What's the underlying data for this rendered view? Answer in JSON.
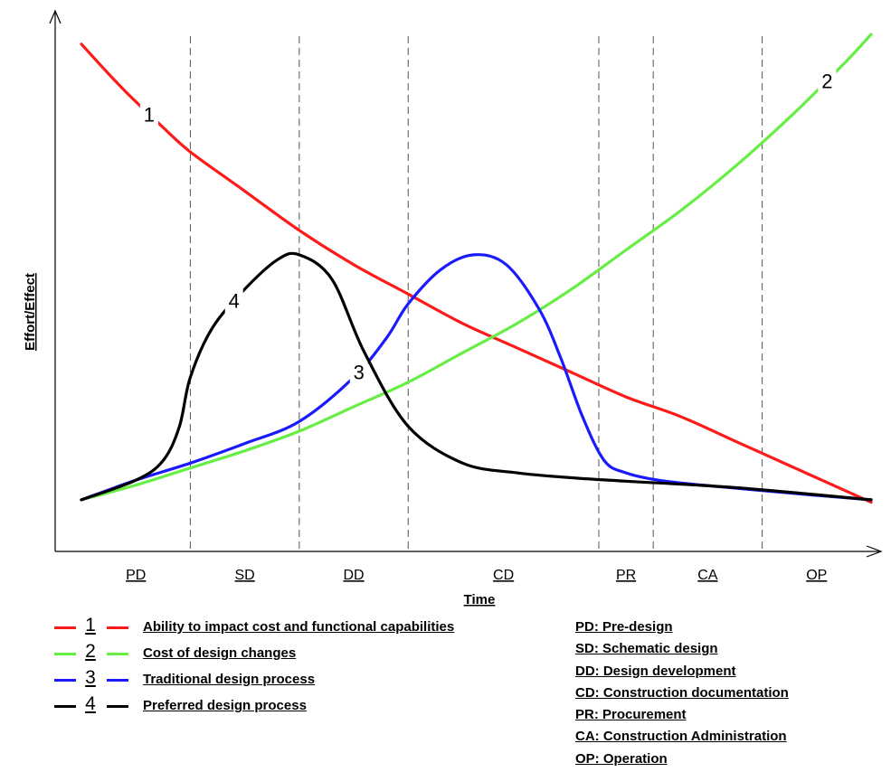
{
  "chart_data": {
    "type": "line",
    "xlabel": "Time",
    "ylabel": "Effort/Effect",
    "phases": [
      "PD",
      "SD",
      "DD",
      "CD",
      "PR",
      "CA",
      "OP"
    ],
    "phase_boundaries": [
      0,
      1,
      2,
      3,
      4.75,
      5.25,
      6.25,
      7.25
    ],
    "series": [
      {
        "name": "Ability to impact cost and functional capabilities",
        "number": "1",
        "color": "#ff1a1a",
        "x": [
          0,
          0.375,
          0.75,
          1.0,
          1.5,
          2.0,
          2.5,
          3.0,
          3.5,
          4.0,
          4.5,
          5.0,
          5.5,
          6.0,
          6.5,
          7.0,
          7.25
        ],
        "y": [
          0.98,
          0.89,
          0.81,
          0.76,
          0.68,
          0.6,
          0.53,
          0.47,
          0.41,
          0.36,
          0.31,
          0.26,
          0.22,
          0.17,
          0.12,
          0.07,
          0.045
        ]
      },
      {
        "name": "Cost of design changes",
        "number": "2",
        "color": "#66ee44",
        "x": [
          0,
          0.5,
          1.0,
          1.5,
          2.0,
          2.5,
          3.0,
          3.5,
          4.0,
          4.5,
          5.0,
          5.5,
          6.0,
          6.5,
          7.0,
          7.25
        ],
        "y": [
          0.05,
          0.08,
          0.115,
          0.15,
          0.19,
          0.24,
          0.29,
          0.35,
          0.41,
          0.48,
          0.56,
          0.64,
          0.73,
          0.83,
          0.94,
          1.0
        ]
      },
      {
        "name": "Traditional design process",
        "number": "3",
        "color": "#1a1aff",
        "x": [
          0,
          0.5,
          1.0,
          1.5,
          2.0,
          2.5,
          2.8,
          3.0,
          3.3,
          3.6,
          3.9,
          4.2,
          4.4,
          4.6,
          4.8,
          5.0,
          5.3,
          5.7,
          6.2,
          6.7,
          7.25
        ],
        "y": [
          0.05,
          0.09,
          0.125,
          0.165,
          0.21,
          0.3,
          0.38,
          0.45,
          0.52,
          0.55,
          0.53,
          0.44,
          0.34,
          0.22,
          0.13,
          0.105,
          0.09,
          0.08,
          0.07,
          0.06,
          0.05
        ]
      },
      {
        "name": "Preferred design process",
        "number": "4",
        "color": "#000000",
        "x": [
          0,
          0.5,
          0.75,
          0.9,
          1.0,
          1.2,
          1.5,
          1.8,
          2.0,
          2.3,
          2.6,
          3.0,
          3.5,
          4.0,
          4.5,
          5.0,
          6.0,
          7.25
        ],
        "y": [
          0.05,
          0.09,
          0.13,
          0.2,
          0.3,
          0.4,
          0.48,
          0.54,
          0.55,
          0.5,
          0.35,
          0.2,
          0.125,
          0.105,
          0.095,
          0.088,
          0.075,
          0.05
        ]
      }
    ]
  },
  "legend": [
    {
      "num": "1",
      "label": "Ability to impact cost and functional capabilities",
      "color": "#ff1a1a"
    },
    {
      "num": "2",
      "label": "Cost of design changes",
      "color": "#66ee44"
    },
    {
      "num": "3",
      "label": "Traditional design process",
      "color": "#1a1aff"
    },
    {
      "num": "4",
      "label": "Preferred design process",
      "color": "#000000"
    }
  ],
  "abbreviations": [
    "PD: Pre-design",
    "SD: Schematic design",
    "DD: Design development",
    "CD: Construction documentation",
    "PR: Procurement",
    "CA: Construction Administration",
    "OP: Operation"
  ]
}
